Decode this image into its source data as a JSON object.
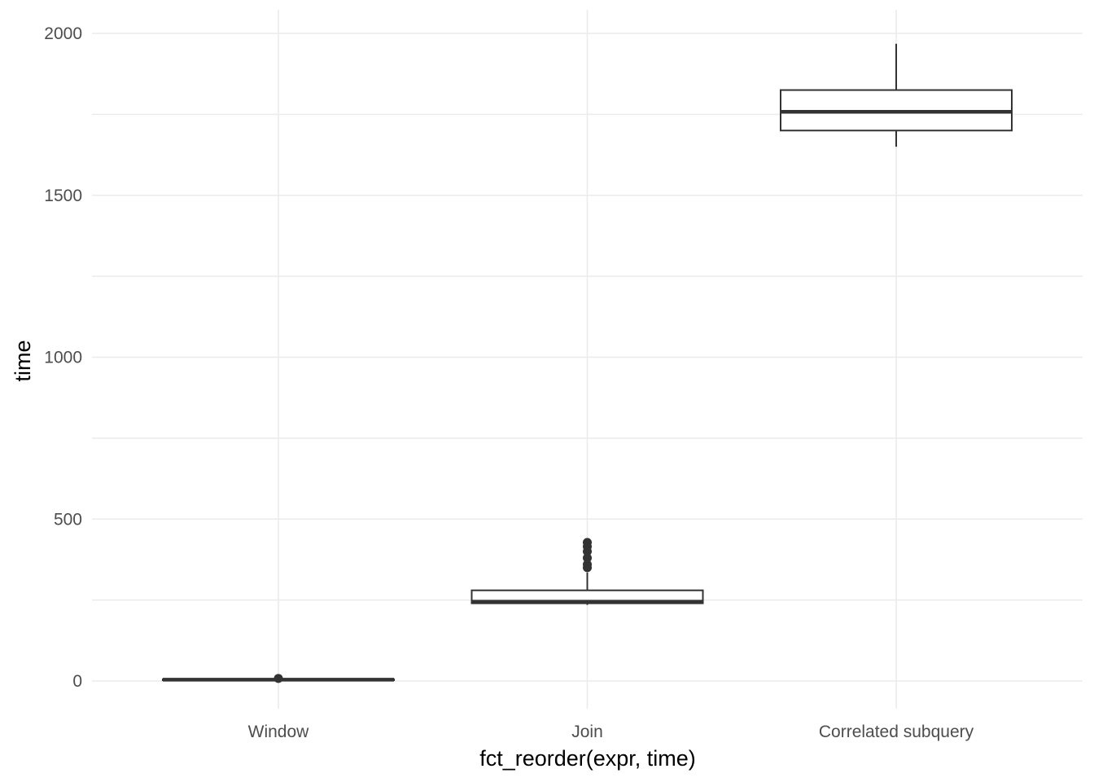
{
  "chart_data": {
    "type": "boxplot",
    "title": "",
    "xlabel": "fct_reorder(expr, time)",
    "ylabel": "time",
    "ylim": [
      -90,
      2070
    ],
    "yticks": [
      0,
      500,
      1000,
      1500,
      2000
    ],
    "yticks_labels": [
      "0",
      "500",
      "1000",
      "1500",
      "2000"
    ],
    "grid": true,
    "legend": "none",
    "colors": {
      "box_stroke": "#333333",
      "box_fill": "#ffffff",
      "grid": "#ebebeb"
    },
    "categories": [
      "Window",
      "Join",
      "Correlated subquery"
    ],
    "boxes": [
      {
        "category": "Window",
        "min": 1,
        "q1": 3,
        "median": 4,
        "q3": 5,
        "max": 6,
        "outliers": [
          8
        ]
      },
      {
        "category": "Join",
        "min": 235,
        "q1": 240,
        "median": 245,
        "q3": 280,
        "max": 335,
        "outliers": [
          350,
          360,
          380,
          400,
          415,
          428
        ]
      },
      {
        "category": "Correlated subquery",
        "min": 1650,
        "q1": 1700,
        "median": 1758,
        "q3": 1825,
        "max": 1968,
        "outliers": []
      }
    ]
  }
}
